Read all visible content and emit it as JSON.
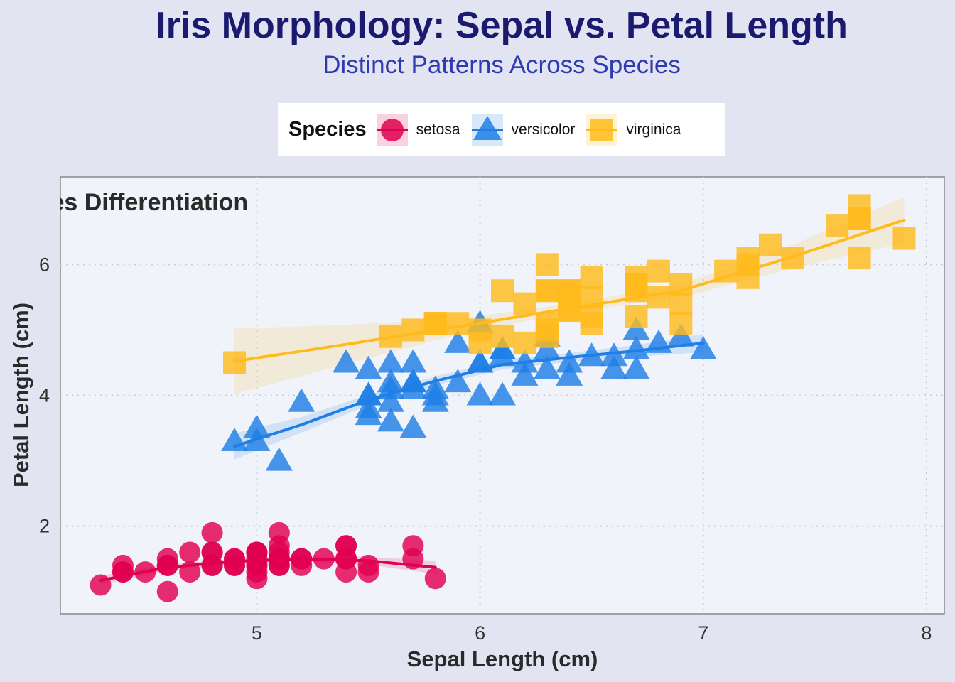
{
  "title": "Iris Morphology: Sepal vs. Petal Length",
  "subtitle": "Distinct Patterns Across Species",
  "legend": {
    "title": "Species",
    "placement": "top",
    "items": [
      {
        "label": "setosa",
        "shape": "circle",
        "color": "#e0004f"
      },
      {
        "label": "versicolor",
        "shape": "triangle",
        "color": "#1f7fe6"
      },
      {
        "label": "virginica",
        "shape": "square",
        "color": "#ffbb1c"
      }
    ]
  },
  "chart_data": {
    "type": "scatter",
    "annotation": "ies Differentiation",
    "xlabel": "Sepal Length (cm)",
    "ylabel": "Petal Length (cm)",
    "xlim": [
      4.12,
      8.08
    ],
    "ylim": [
      0.66,
      7.34
    ],
    "xticks": [
      5,
      6,
      7,
      8
    ],
    "yticks": [
      2,
      4,
      6
    ],
    "grid": true,
    "smoothing": "loess with confidence band",
    "series": [
      {
        "name": "setosa",
        "color": "#e0004f",
        "marker": "circle",
        "points": [
          [
            5.1,
            1.4
          ],
          [
            4.9,
            1.4
          ],
          [
            4.7,
            1.3
          ],
          [
            4.6,
            1.5
          ],
          [
            5.0,
            1.4
          ],
          [
            5.4,
            1.7
          ],
          [
            4.6,
            1.4
          ],
          [
            5.0,
            1.5
          ],
          [
            4.4,
            1.4
          ],
          [
            4.9,
            1.5
          ],
          [
            5.4,
            1.5
          ],
          [
            4.8,
            1.6
          ],
          [
            4.8,
            1.4
          ],
          [
            4.3,
            1.1
          ],
          [
            5.8,
            1.2
          ],
          [
            5.7,
            1.5
          ],
          [
            5.4,
            1.3
          ],
          [
            5.1,
            1.4
          ],
          [
            5.7,
            1.7
          ],
          [
            5.1,
            1.5
          ],
          [
            5.4,
            1.7
          ],
          [
            5.1,
            1.5
          ],
          [
            4.6,
            1.0
          ],
          [
            5.1,
            1.7
          ],
          [
            4.8,
            1.9
          ],
          [
            5.0,
            1.6
          ],
          [
            5.0,
            1.6
          ],
          [
            5.2,
            1.5
          ],
          [
            5.2,
            1.4
          ],
          [
            4.7,
            1.6
          ],
          [
            4.8,
            1.6
          ],
          [
            5.4,
            1.5
          ],
          [
            5.2,
            1.5
          ],
          [
            5.5,
            1.4
          ],
          [
            4.9,
            1.5
          ],
          [
            5.0,
            1.2
          ],
          [
            5.5,
            1.3
          ],
          [
            4.9,
            1.4
          ],
          [
            4.4,
            1.3
          ],
          [
            5.1,
            1.5
          ],
          [
            5.0,
            1.3
          ],
          [
            4.5,
            1.3
          ],
          [
            4.4,
            1.3
          ],
          [
            5.0,
            1.6
          ],
          [
            5.1,
            1.9
          ],
          [
            4.8,
            1.4
          ],
          [
            5.1,
            1.6
          ],
          [
            4.6,
            1.4
          ],
          [
            5.3,
            1.5
          ],
          [
            5.0,
            1.4
          ]
        ],
        "fit": [
          [
            4.3,
            1.17
          ],
          [
            4.6,
            1.37
          ],
          [
            4.9,
            1.46
          ],
          [
            5.2,
            1.5
          ],
          [
            5.5,
            1.47
          ],
          [
            5.8,
            1.37
          ]
        ],
        "band": [
          0.07,
          0.05,
          0.04,
          0.04,
          0.06,
          0.1
        ]
      },
      {
        "name": "versicolor",
        "color": "#1f7fe6",
        "marker": "triangle",
        "points": [
          [
            7.0,
            4.7
          ],
          [
            6.4,
            4.5
          ],
          [
            6.9,
            4.9
          ],
          [
            5.5,
            4.0
          ],
          [
            6.5,
            4.6
          ],
          [
            5.7,
            4.5
          ],
          [
            6.3,
            4.7
          ],
          [
            4.9,
            3.3
          ],
          [
            6.6,
            4.6
          ],
          [
            5.2,
            3.9
          ],
          [
            5.0,
            3.5
          ],
          [
            5.9,
            4.2
          ],
          [
            6.0,
            4.0
          ],
          [
            6.1,
            4.7
          ],
          [
            5.6,
            3.6
          ],
          [
            6.7,
            4.4
          ],
          [
            5.6,
            4.5
          ],
          [
            5.8,
            4.1
          ],
          [
            6.2,
            4.5
          ],
          [
            5.6,
            3.9
          ],
          [
            5.9,
            4.8
          ],
          [
            6.1,
            4.0
          ],
          [
            6.3,
            4.9
          ],
          [
            6.1,
            4.7
          ],
          [
            6.4,
            4.3
          ],
          [
            6.6,
            4.4
          ],
          [
            6.8,
            4.8
          ],
          [
            6.7,
            5.0
          ],
          [
            6.0,
            4.5
          ],
          [
            5.7,
            3.5
          ],
          [
            5.5,
            3.8
          ],
          [
            5.5,
            3.7
          ],
          [
            5.8,
            3.9
          ],
          [
            6.0,
            5.1
          ],
          [
            5.4,
            4.5
          ],
          [
            6.0,
            4.5
          ],
          [
            6.7,
            4.7
          ],
          [
            6.3,
            4.4
          ],
          [
            5.6,
            4.1
          ],
          [
            5.5,
            4.0
          ],
          [
            5.5,
            4.4
          ],
          [
            6.1,
            4.6
          ],
          [
            5.8,
            4.0
          ],
          [
            5.0,
            3.3
          ],
          [
            5.6,
            4.2
          ],
          [
            5.7,
            4.2
          ],
          [
            5.7,
            4.2
          ],
          [
            6.2,
            4.3
          ],
          [
            5.1,
            3.0
          ],
          [
            5.7,
            4.1
          ]
        ],
        "fit": [
          [
            4.9,
            3.22
          ],
          [
            5.2,
            3.55
          ],
          [
            5.5,
            3.93
          ],
          [
            5.8,
            4.22
          ],
          [
            6.1,
            4.47
          ],
          [
            6.4,
            4.58
          ],
          [
            6.7,
            4.68
          ],
          [
            7.0,
            4.8
          ]
        ],
        "band": [
          0.2,
          0.12,
          0.08,
          0.07,
          0.07,
          0.07,
          0.09,
          0.14
        ]
      },
      {
        "name": "virginica",
        "color": "#ffbb1c",
        "marker": "square",
        "points": [
          [
            6.3,
            6.0
          ],
          [
            5.8,
            5.1
          ],
          [
            7.1,
            5.9
          ],
          [
            6.3,
            5.6
          ],
          [
            6.5,
            5.8
          ],
          [
            7.6,
            6.6
          ],
          [
            4.9,
            4.5
          ],
          [
            7.3,
            6.3
          ],
          [
            6.7,
            5.8
          ],
          [
            7.2,
            6.1
          ],
          [
            6.5,
            5.1
          ],
          [
            6.4,
            5.3
          ],
          [
            6.8,
            5.5
          ],
          [
            5.7,
            5.0
          ],
          [
            5.8,
            5.1
          ],
          [
            6.4,
            5.3
          ],
          [
            6.5,
            5.5
          ],
          [
            7.7,
            6.7
          ],
          [
            7.7,
            6.9
          ],
          [
            6.0,
            5.0
          ],
          [
            6.9,
            5.7
          ],
          [
            5.6,
            4.9
          ],
          [
            7.7,
            6.7
          ],
          [
            6.3,
            4.9
          ],
          [
            6.7,
            5.7
          ],
          [
            7.2,
            6.0
          ],
          [
            6.2,
            4.8
          ],
          [
            6.1,
            4.9
          ],
          [
            6.4,
            5.6
          ],
          [
            7.2,
            5.8
          ],
          [
            7.4,
            6.1
          ],
          [
            7.9,
            6.4
          ],
          [
            6.4,
            5.6
          ],
          [
            6.3,
            5.1
          ],
          [
            6.1,
            5.6
          ],
          [
            7.7,
            6.1
          ],
          [
            6.3,
            5.6
          ],
          [
            6.4,
            5.5
          ],
          [
            6.0,
            4.8
          ],
          [
            6.9,
            5.4
          ],
          [
            6.7,
            5.6
          ],
          [
            6.9,
            5.1
          ],
          [
            5.8,
            5.1
          ],
          [
            6.8,
            5.9
          ],
          [
            6.7,
            5.7
          ],
          [
            6.7,
            5.2
          ],
          [
            6.3,
            5.0
          ],
          [
            6.5,
            5.2
          ],
          [
            6.2,
            5.4
          ],
          [
            5.9,
            5.1
          ]
        ],
        "fit": [
          [
            4.9,
            4.52
          ],
          [
            5.4,
            4.78
          ],
          [
            5.9,
            5.05
          ],
          [
            6.4,
            5.33
          ],
          [
            6.9,
            5.6
          ],
          [
            7.4,
            6.12
          ],
          [
            7.9,
            6.68
          ]
        ],
        "band": [
          0.5,
          0.3,
          0.12,
          0.07,
          0.1,
          0.18,
          0.35
        ]
      }
    ]
  }
}
